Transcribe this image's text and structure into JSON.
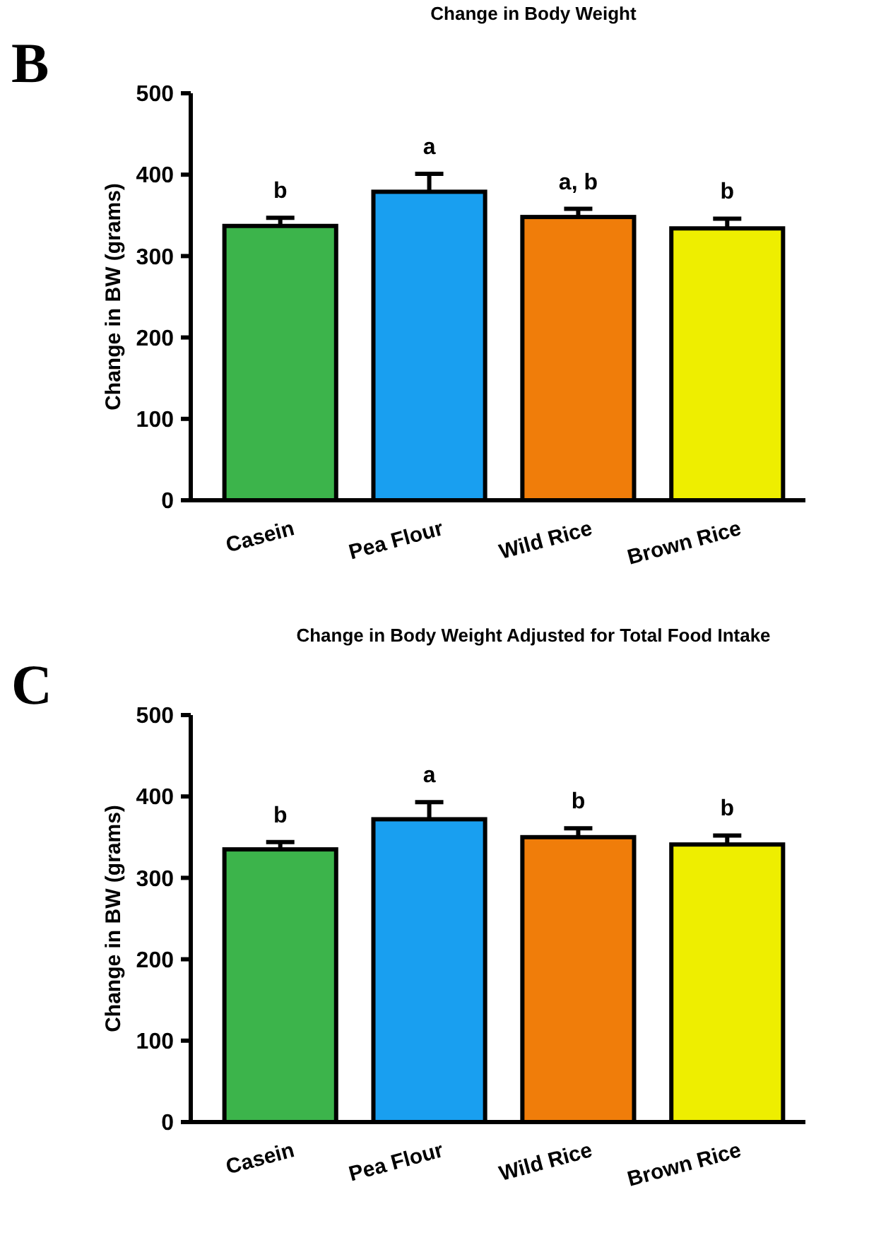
{
  "chart_data": [
    {
      "type": "bar",
      "title": "Change in Body Weight",
      "ylabel": "Change in BW (grams)",
      "categories": [
        "Casein",
        "Pea Flour",
        "Wild Rice",
        "Brown Rice"
      ],
      "values": [
        337,
        379,
        348,
        334
      ],
      "errors": [
        10,
        22,
        10,
        12
      ],
      "colors": [
        "#3cb44b",
        "#199ff0",
        "#f07d0a",
        "#eeee00"
      ],
      "ylim": [
        0,
        500
      ],
      "yticks": [
        0,
        100,
        200,
        300,
        400,
        500
      ],
      "grid": false,
      "annotations": [
        "B",
        {
          "text": "b",
          "x": "Casein",
          "y": 347
        },
        {
          "text": "a",
          "x": "Pea Flour",
          "y": 401
        },
        {
          "text": "a, b",
          "x": "Wild Rice",
          "y": 358
        },
        {
          "text": "b",
          "x": "Brown Rice",
          "y": 346
        }
      ]
    },
    {
      "type": "bar",
      "title": "Change in Body Weight Adjusted for Total Food Intake",
      "ylabel": "Change in BW (grams)",
      "categories": [
        "Casein",
        "Pea Flour",
        "Wild Rice",
        "Brown Rice"
      ],
      "values": [
        335,
        372,
        350,
        341
      ],
      "errors": [
        9,
        21,
        11,
        11
      ],
      "colors": [
        "#3cb44b",
        "#199ff0",
        "#f07d0a",
        "#eeee00"
      ],
      "ylim": [
        0,
        500
      ],
      "yticks": [
        0,
        100,
        200,
        300,
        400,
        500
      ],
      "grid": false,
      "annotations": [
        "C",
        {
          "text": "b",
          "x": "Casein",
          "y": 344
        },
        {
          "text": "a",
          "x": "Pea Flour",
          "y": 393
        },
        {
          "text": "b",
          "x": "Wild Rice",
          "y": 361
        },
        {
          "text": "b",
          "x": "Brown Rice",
          "y": 352
        }
      ]
    }
  ]
}
